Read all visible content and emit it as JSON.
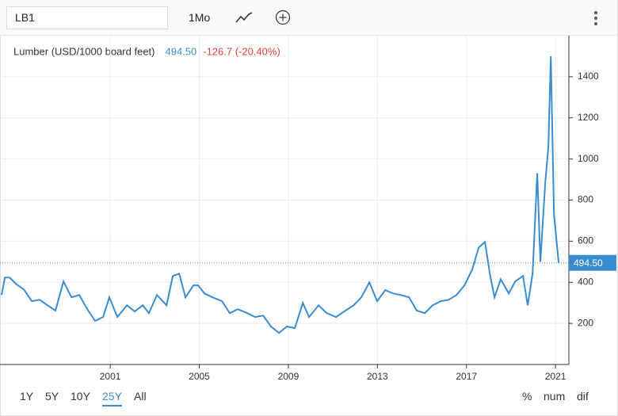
{
  "toolbar": {
    "symbol": "LB1",
    "frequency": "1Mo"
  },
  "footer": {
    "ranges": [
      "1Y",
      "5Y",
      "10Y",
      "25Y",
      "All"
    ],
    "modes": [
      "%",
      "num",
      "dif"
    ]
  },
  "chart_data": {
    "type": "line",
    "last_price": "494.50",
    "change": "-126.7 (-20.40%)",
    "x": [
      1996.12,
      1996.27,
      1996.48,
      1996.77,
      1997.12,
      1997.48,
      1997.83,
      1998.19,
      1998.54,
      1998.9,
      1999.26,
      1999.61,
      1999.97,
      2000.32,
      2000.68,
      2000.96,
      2001.32,
      2001.75,
      2002.1,
      2002.46,
      2002.74,
      2003.1,
      2003.53,
      2003.81,
      2004.1,
      2004.38,
      2004.74,
      2004.95,
      2005.23,
      2005.59,
      2006.02,
      2006.37,
      2006.73,
      2007.16,
      2007.51,
      2007.87,
      2008.22,
      2008.58,
      2008.94,
      2009.29,
      2009.65,
      2009.93,
      2010.36,
      2010.72,
      2011.14,
      2011.57,
      2011.93,
      2012.28,
      2012.64,
      2012.99,
      2013.35,
      2013.7,
      2014.06,
      2014.42,
      2014.77,
      2015.13,
      2015.48,
      2015.84,
      2016.2,
      2016.55,
      2016.91,
      2017.26,
      2017.55,
      2017.83,
      2018.05,
      2018.26,
      2018.54,
      2018.9,
      2019.19,
      2019.54,
      2019.75,
      2019.97,
      2020.18,
      2020.32,
      2020.54,
      2020.68,
      2020.79,
      2020.93,
      2021.14
    ],
    "series": [
      {
        "name": "Lumber (USD/1000 board feet)",
        "color": "#3a8cd1",
        "values": [
          338,
          423,
          423,
          392,
          365,
          308,
          315,
          288,
          262,
          404,
          327,
          338,
          269,
          212,
          231,
          327,
          231,
          288,
          258,
          288,
          250,
          338,
          288,
          431,
          442,
          327,
          385,
          385,
          346,
          327,
          308,
          250,
          269,
          250,
          231,
          238,
          185,
          154,
          185,
          177,
          300,
          231,
          288,
          250,
          231,
          262,
          288,
          327,
          400,
          308,
          362,
          346,
          338,
          327,
          262,
          250,
          288,
          308,
          315,
          338,
          385,
          462,
          569,
          596,
          442,
          327,
          415,
          346,
          404,
          431,
          288,
          442,
          931,
          500,
          885,
          1058,
          1500,
          731,
          494.5
        ]
      }
    ],
    "xlim": [
      1996.05,
      2021.6
    ],
    "xticks": [
      2001,
      2005,
      2009,
      2013,
      2017,
      2021
    ],
    "ylim": [
      0,
      1600
    ],
    "yticks": [
      200,
      400,
      600,
      800,
      1000,
      1200,
      1400
    ],
    "grid": true
  }
}
